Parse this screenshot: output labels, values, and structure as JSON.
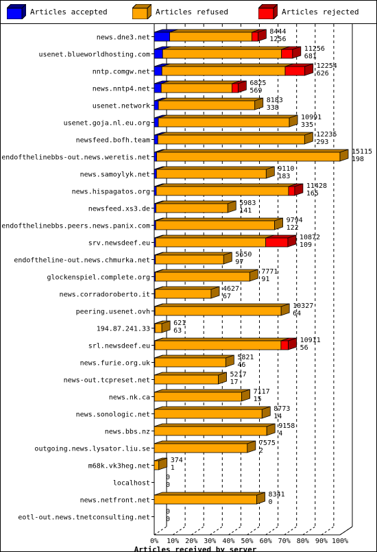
{
  "legend": {
    "accepted": "Articles accepted",
    "refused": "Articles refused",
    "rejected": "Articles rejected"
  },
  "colors": {
    "accepted": "#0000ff",
    "refused": "#ffa500",
    "rejected": "#ff0000"
  },
  "chart_data": {
    "type": "bar",
    "orientation": "horizontal",
    "stacked": true,
    "xlabel": "Articles received by server",
    "x_ticks": [
      "0%",
      "10%",
      "20%",
      "30%",
      "40%",
      "50%",
      "60%",
      "70%",
      "80%",
      "90%",
      "100%"
    ],
    "xlim": [
      0,
      100
    ],
    "max_total": 15115,
    "grid": true,
    "legend_position": "top",
    "categories": [
      "news.dne3.net",
      "usenet.blueworldhosting.com",
      "nntp.comgw.net",
      "news.nntp4.net",
      "usenet.network",
      "usenet.goja.nl.eu.org",
      "newsfeed.bofh.team",
      "endofthelinebbs-out.news.weretis.net",
      "news.samoylyk.net",
      "news.hispagatos.org",
      "newsfeed.xs3.de",
      "endofthelinebbs.peers.news.panix.com",
      "srv.newsdeef.eu",
      "endoftheline-out.news.chmurka.net",
      "glockenspiel.complete.org",
      "news.corradoroberto.it",
      "peering.usenet.ovh",
      "194.87.241.33",
      "srl.newsdeef.eu",
      "news.furie.org.uk",
      "news-out.tcpreset.net",
      "news.nk.ca",
      "news.sonologic.net",
      "news.bbs.nz",
      "outgoing.news.lysator.liu.se",
      "m68k.vk3heg.net",
      "localhost",
      "news.netfront.net",
      "eotl-out.news.tnetconsulting.net"
    ],
    "totals": [
      8444,
      11256,
      12254,
      6825,
      8183,
      10991,
      12235,
      15115,
      9110,
      11428,
      5983,
      9794,
      10872,
      5650,
      7771,
      4627,
      10327,
      621,
      10911,
      5821,
      5217,
      7117,
      8773,
      9158,
      7575,
      374,
      0,
      8341,
      0
    ],
    "accepted": [
      1256,
      681,
      626,
      569,
      338,
      335,
      293,
      198,
      183,
      165,
      141,
      122,
      109,
      97,
      91,
      67,
      64,
      63,
      56,
      46,
      17,
      15,
      14,
      4,
      2,
      1,
      0,
      0,
      0
    ],
    "rejected": [
      500,
      900,
      1600,
      500,
      0,
      0,
      0,
      0,
      0,
      500,
      0,
      0,
      1800,
      0,
      0,
      0,
      0,
      0,
      600,
      0,
      0,
      0,
      0,
      0,
      0,
      0,
      0,
      0,
      0
    ],
    "series": [
      {
        "name": "Articles accepted",
        "key": "accepted"
      },
      {
        "name": "Articles refused",
        "key": "refused"
      },
      {
        "name": "Articles rejected",
        "key": "rejected"
      }
    ]
  }
}
